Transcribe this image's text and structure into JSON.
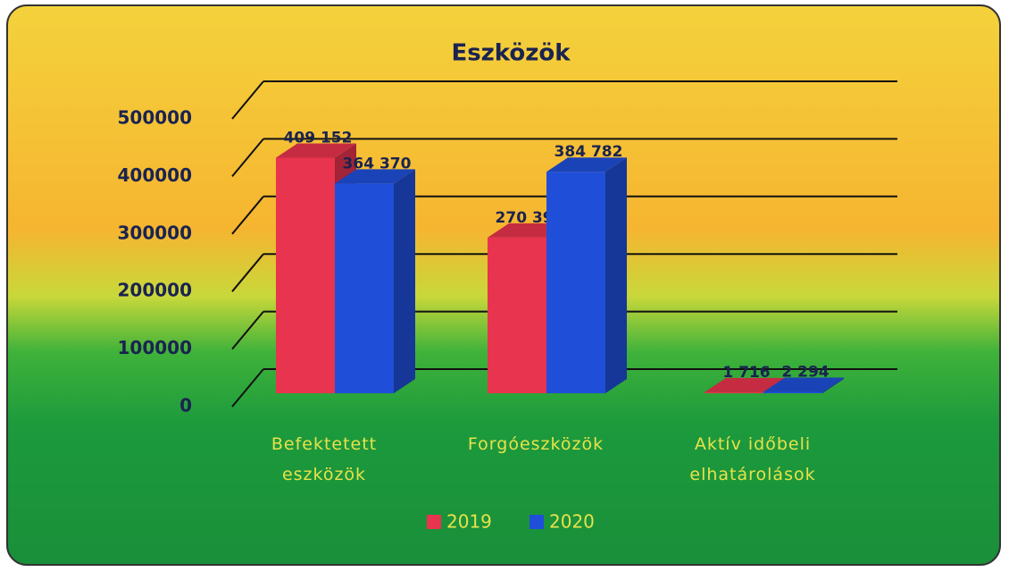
{
  "chart_data": {
    "type": "bar3d",
    "title": "Eszközök",
    "categories": [
      "Befektetett eszközök",
      "Forgóeszközök",
      "Aktív időbeli elhatárolások"
    ],
    "series": [
      {
        "name": "2019",
        "color": "#e8344e",
        "values": [
          409152,
          270390,
          1716
        ],
        "value_labels": [
          "409 152",
          "270 390",
          "1 716"
        ]
      },
      {
        "name": "2020",
        "color": "#1f4fd8",
        "values": [
          364370,
          384782,
          2294
        ],
        "value_labels": [
          "364 370",
          "384 782",
          "2 294"
        ]
      }
    ],
    "ylim": [
      0,
      500000
    ],
    "yticks": [
      0,
      100000,
      200000,
      300000,
      400000,
      500000
    ],
    "grid": true,
    "legend": "bottom"
  }
}
